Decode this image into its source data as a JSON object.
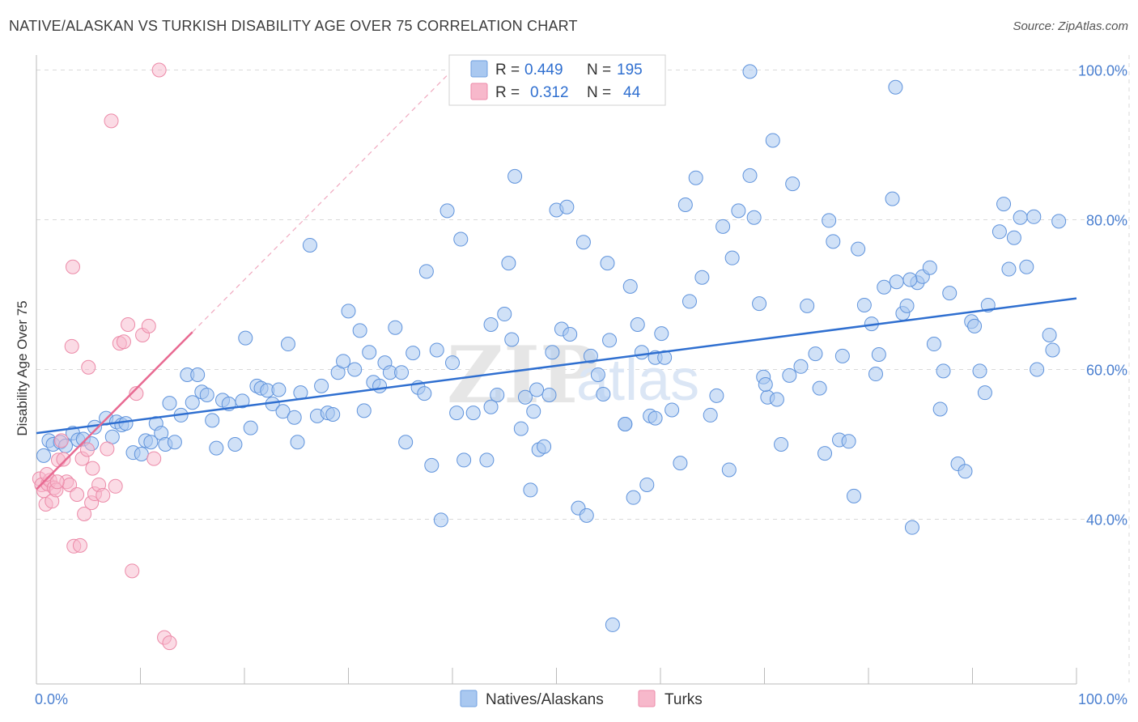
{
  "header": {
    "title": "NATIVE/ALASKAN VS TURKISH DISABILITY AGE OVER 75 CORRELATION CHART",
    "source": "Source: ZipAtlas.com"
  },
  "legend": {
    "rows": [
      {
        "r_label": "R =",
        "r_value": "0.449",
        "n_label": "N =",
        "n_value": "195",
        "color": "#a9c8f0",
        "stroke": "#6f9fe0"
      },
      {
        "r_label": "R =",
        "r_value": "0.312",
        "n_label": "N =",
        "n_value": "44",
        "color": "#f7b8cb",
        "stroke": "#ec8aa8"
      }
    ]
  },
  "bottom_legend": [
    {
      "label": "Natives/Alaskans",
      "color": "#a9c8f0",
      "stroke": "#6f9fe0"
    },
    {
      "label": "Turks",
      "color": "#f7b8cb",
      "stroke": "#ec8aa8"
    }
  ],
  "watermark": {
    "zip": "ZIP",
    "atlas": "atlas"
  },
  "colors": {
    "blue_line": "#2f6fd0",
    "pink_line": "#e86a92",
    "grid": "#d9d9d9",
    "tick_label": "#4a7fd0"
  },
  "chart_data": {
    "type": "scatter",
    "title": "NATIVE/ALASKAN VS TURKISH DISABILITY AGE OVER 75 CORRELATION CHART",
    "xlabel": "",
    "ylabel": "Disability Age Over 75",
    "xlim": [
      0,
      100
    ],
    "ylim": [
      18,
      102
    ],
    "x_tick_labels": [
      "0.0%",
      "100.0%"
    ],
    "y_ticks": [
      40,
      60,
      80,
      100
    ],
    "y_tick_labels": [
      "40.0%",
      "60.0%",
      "80.0%",
      "100.0%"
    ],
    "grid": true,
    "legend_position": "top-center",
    "series": [
      {
        "name": "Natives/Alaskans",
        "color": "#a9c8f0",
        "trend": {
          "x": [
            0,
            100
          ],
          "y": [
            51.5,
            69.5
          ]
        },
        "points": [
          [
            0.7,
            48.5
          ],
          [
            1.2,
            50.5
          ],
          [
            1.6,
            50.0
          ],
          [
            2.3,
            50.3
          ],
          [
            2.8,
            49.8
          ],
          [
            3.5,
            51.5
          ],
          [
            4.0,
            50.6
          ],
          [
            4.5,
            50.7
          ],
          [
            5.3,
            50.1
          ],
          [
            5.6,
            52.3
          ],
          [
            6.7,
            53.5
          ],
          [
            7.3,
            51.0
          ],
          [
            7.7,
            53.0
          ],
          [
            8.2,
            52.6
          ],
          [
            8.6,
            52.8
          ],
          [
            9.3,
            48.9
          ],
          [
            10.1,
            48.7
          ],
          [
            10.5,
            50.5
          ],
          [
            11.0,
            50.3
          ],
          [
            11.5,
            52.8
          ],
          [
            12.0,
            51.5
          ],
          [
            12.4,
            50.0
          ],
          [
            12.8,
            55.5
          ],
          [
            13.3,
            50.3
          ],
          [
            13.9,
            53.9
          ],
          [
            14.5,
            59.3
          ],
          [
            15.0,
            55.6
          ],
          [
            15.5,
            59.3
          ],
          [
            15.9,
            57.0
          ],
          [
            16.4,
            56.6
          ],
          [
            16.9,
            53.2
          ],
          [
            17.3,
            49.5
          ],
          [
            17.9,
            55.9
          ],
          [
            18.5,
            55.4
          ],
          [
            19.1,
            50.0
          ],
          [
            19.8,
            55.8
          ],
          [
            20.1,
            64.2
          ],
          [
            20.6,
            52.2
          ],
          [
            21.2,
            57.8
          ],
          [
            21.6,
            57.5
          ],
          [
            22.2,
            57.2
          ],
          [
            22.7,
            55.4
          ],
          [
            23.3,
            57.3
          ],
          [
            23.7,
            54.4
          ],
          [
            24.2,
            63.4
          ],
          [
            24.8,
            53.6
          ],
          [
            25.1,
            50.3
          ],
          [
            25.4,
            56.9
          ],
          [
            26.3,
            76.6
          ],
          [
            27.0,
            53.8
          ],
          [
            27.4,
            57.8
          ],
          [
            28.0,
            54.2
          ],
          [
            28.5,
            54.0
          ],
          [
            29.0,
            59.6
          ],
          [
            29.5,
            61.1
          ],
          [
            30.0,
            67.8
          ],
          [
            30.6,
            60.0
          ],
          [
            31.1,
            65.2
          ],
          [
            31.5,
            54.5
          ],
          [
            32.0,
            62.3
          ],
          [
            32.4,
            58.3
          ],
          [
            33.0,
            57.8
          ],
          [
            33.5,
            60.9
          ],
          [
            34.0,
            59.6
          ],
          [
            34.5,
            65.6
          ],
          [
            35.1,
            59.6
          ],
          [
            35.5,
            50.3
          ],
          [
            36.2,
            62.2
          ],
          [
            36.7,
            57.6
          ],
          [
            37.3,
            56.8
          ],
          [
            37.5,
            73.1
          ],
          [
            38.0,
            47.2
          ],
          [
            38.5,
            62.6
          ],
          [
            38.9,
            39.9
          ],
          [
            39.5,
            81.2
          ],
          [
            40.0,
            60.9
          ],
          [
            40.4,
            54.2
          ],
          [
            40.8,
            77.4
          ],
          [
            41.1,
            47.9
          ],
          [
            42.0,
            54.2
          ],
          [
            43.3,
            47.9
          ],
          [
            43.7,
            66.0
          ],
          [
            44.3,
            56.6
          ],
          [
            45.0,
            67.4
          ],
          [
            45.4,
            74.2
          ],
          [
            45.7,
            64.0
          ],
          [
            46.0,
            85.8
          ],
          [
            46.6,
            52.1
          ],
          [
            47.0,
            56.3
          ],
          [
            47.5,
            43.9
          ],
          [
            47.8,
            54.4
          ],
          [
            48.3,
            49.3
          ],
          [
            48.8,
            49.7
          ],
          [
            49.3,
            56.6
          ],
          [
            49.6,
            62.3
          ],
          [
            50.0,
            81.3
          ],
          [
            50.5,
            65.4
          ],
          [
            51.0,
            81.7
          ],
          [
            51.3,
            64.7
          ],
          [
            52.1,
            41.5
          ],
          [
            52.6,
            77.0
          ],
          [
            52.9,
            40.5
          ],
          [
            53.3,
            61.8
          ],
          [
            54.0,
            59.3
          ],
          [
            54.5,
            56.7
          ],
          [
            54.9,
            74.2
          ],
          [
            55.1,
            63.9
          ],
          [
            55.4,
            25.9
          ],
          [
            56.6,
            52.7
          ],
          [
            57.1,
            71.1
          ],
          [
            57.4,
            42.9
          ],
          [
            57.8,
            66.0
          ],
          [
            58.2,
            62.3
          ],
          [
            58.7,
            44.6
          ],
          [
            59.0,
            53.8
          ],
          [
            59.5,
            61.6
          ],
          [
            60.1,
            64.8
          ],
          [
            60.4,
            61.6
          ],
          [
            61.1,
            54.6
          ],
          [
            61.9,
            47.5
          ],
          [
            62.4,
            82.0
          ],
          [
            62.8,
            69.1
          ],
          [
            63.4,
            85.6
          ],
          [
            64.0,
            72.3
          ],
          [
            64.8,
            53.9
          ],
          [
            65.4,
            56.5
          ],
          [
            66.0,
            79.1
          ],
          [
            66.6,
            46.6
          ],
          [
            66.9,
            74.9
          ],
          [
            67.5,
            81.2
          ],
          [
            68.6,
            85.9
          ],
          [
            69.0,
            80.3
          ],
          [
            69.5,
            68.8
          ],
          [
            69.9,
            59.0
          ],
          [
            70.3,
            56.3
          ],
          [
            70.8,
            90.6
          ],
          [
            71.2,
            56.0
          ],
          [
            71.6,
            50.0
          ],
          [
            72.4,
            59.2
          ],
          [
            72.7,
            84.8
          ],
          [
            73.5,
            60.4
          ],
          [
            74.1,
            68.5
          ],
          [
            74.9,
            62.1
          ],
          [
            75.3,
            57.5
          ],
          [
            75.8,
            48.8
          ],
          [
            76.2,
            79.9
          ],
          [
            76.6,
            77.1
          ],
          [
            77.2,
            50.6
          ],
          [
            77.5,
            61.8
          ],
          [
            78.1,
            50.4
          ],
          [
            78.6,
            43.1
          ],
          [
            79.0,
            76.1
          ],
          [
            79.6,
            68.6
          ],
          [
            80.3,
            66.1
          ],
          [
            80.7,
            59.4
          ],
          [
            81.0,
            62.0
          ],
          [
            81.5,
            71.0
          ],
          [
            82.3,
            82.8
          ],
          [
            82.7,
            71.7
          ],
          [
            83.3,
            67.5
          ],
          [
            83.7,
            68.5
          ],
          [
            84.2,
            38.9
          ],
          [
            84.7,
            71.6
          ],
          [
            85.2,
            72.4
          ],
          [
            85.9,
            73.6
          ],
          [
            86.3,
            63.4
          ],
          [
            86.9,
            54.7
          ],
          [
            87.2,
            59.8
          ],
          [
            87.8,
            70.2
          ],
          [
            88.6,
            47.4
          ],
          [
            89.3,
            46.4
          ],
          [
            89.9,
            66.4
          ],
          [
            90.2,
            65.8
          ],
          [
            90.7,
            59.8
          ],
          [
            91.2,
            56.9
          ],
          [
            91.5,
            68.6
          ],
          [
            92.6,
            78.4
          ],
          [
            93.0,
            82.1
          ],
          [
            93.5,
            73.4
          ],
          [
            94.0,
            77.6
          ],
          [
            94.6,
            80.3
          ],
          [
            95.2,
            73.7
          ],
          [
            95.9,
            80.4
          ],
          [
            96.2,
            60.0
          ],
          [
            97.4,
            64.6
          ],
          [
            97.7,
            62.6
          ],
          [
            98.3,
            79.8
          ],
          [
            68.6,
            99.8
          ],
          [
            82.6,
            97.7
          ],
          [
            84.0,
            72.0
          ],
          [
            56.6,
            52.7
          ],
          [
            43.7,
            55.0
          ],
          [
            48.1,
            57.3
          ],
          [
            59.5,
            53.5
          ],
          [
            70.1,
            58.0
          ]
        ]
      },
      {
        "name": "Turks",
        "color": "#f7b8cb",
        "trend": {
          "x": [
            0,
            15
          ],
          "y": [
            44.0,
            65.0
          ]
        },
        "points": [
          [
            0.3,
            45.4
          ],
          [
            0.5,
            44.6
          ],
          [
            0.7,
            43.8
          ],
          [
            0.9,
            42.0
          ],
          [
            1.1,
            44.7
          ],
          [
            1.3,
            45.2
          ],
          [
            1.5,
            42.4
          ],
          [
            1.7,
            44.2
          ],
          [
            1.9,
            43.9
          ],
          [
            2.1,
            47.9
          ],
          [
            2.4,
            50.5
          ],
          [
            2.6,
            48.0
          ],
          [
            2.9,
            45.0
          ],
          [
            3.2,
            44.6
          ],
          [
            3.6,
            36.4
          ],
          [
            3.9,
            43.3
          ],
          [
            4.2,
            36.5
          ],
          [
            4.4,
            48.1
          ],
          [
            4.6,
            40.7
          ],
          [
            5.0,
            60.3
          ],
          [
            5.3,
            42.2
          ],
          [
            5.6,
            43.4
          ],
          [
            6.0,
            44.6
          ],
          [
            6.4,
            43.2
          ],
          [
            6.8,
            49.4
          ],
          [
            7.2,
            93.2
          ],
          [
            7.6,
            44.4
          ],
          [
            8.0,
            63.5
          ],
          [
            8.4,
            63.7
          ],
          [
            8.8,
            66.0
          ],
          [
            9.2,
            33.1
          ],
          [
            9.6,
            56.8
          ],
          [
            10.2,
            64.6
          ],
          [
            10.8,
            65.8
          ],
          [
            11.3,
            48.1
          ],
          [
            11.8,
            100.0
          ],
          [
            12.3,
            24.2
          ],
          [
            12.8,
            23.5
          ],
          [
            1.0,
            46.0
          ],
          [
            2.0,
            45.0
          ],
          [
            3.4,
            63.1
          ],
          [
            3.5,
            73.7
          ],
          [
            5.4,
            46.8
          ],
          [
            4.9,
            49.3
          ]
        ]
      }
    ]
  }
}
